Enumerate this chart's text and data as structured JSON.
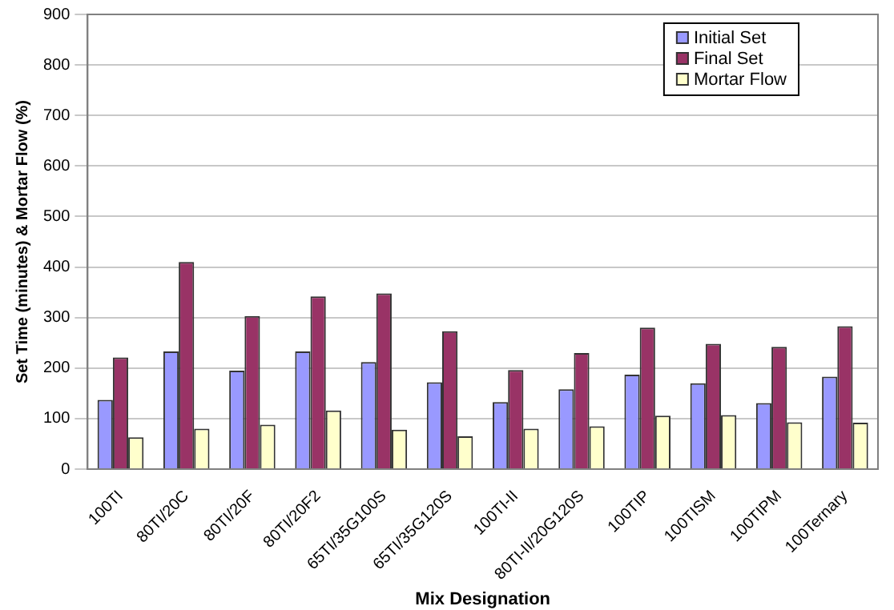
{
  "chart_data": {
    "type": "bar",
    "xlabel": "Mix Designation",
    "ylabel": "Set Time (minutes) & Mortar Flow (%)",
    "categories": [
      "100TI",
      "80TI/20C",
      "80TI/20F",
      "80TI/20F2",
      "65TI/35G100S",
      "65TI/35G120S",
      "100TI-II",
      "80TI-II/20G120S",
      "100TIP",
      "100TISM",
      "100TIPM",
      "100Ternary"
    ],
    "series": [
      {
        "name": "Initial Set",
        "color": "#9999ff",
        "values": [
          137,
          233,
          195,
          233,
          212,
          172,
          133,
          158,
          187,
          170,
          131,
          183
        ]
      },
      {
        "name": "Final Set",
        "color": "#993366",
        "values": [
          221,
          410,
          303,
          342,
          348,
          273,
          196,
          230,
          280,
          248,
          242,
          283
        ]
      },
      {
        "name": "Mortar Flow",
        "color": "#ffffcc",
        "values": [
          63,
          80,
          88,
          116,
          78,
          65,
          80,
          85,
          106,
          107,
          93,
          92
        ]
      }
    ],
    "ylim": [
      0,
      900
    ],
    "yticks": [
      0,
      100,
      200,
      300,
      400,
      500,
      600,
      700,
      800,
      900
    ],
    "grid": "y",
    "legend": "top right"
  }
}
